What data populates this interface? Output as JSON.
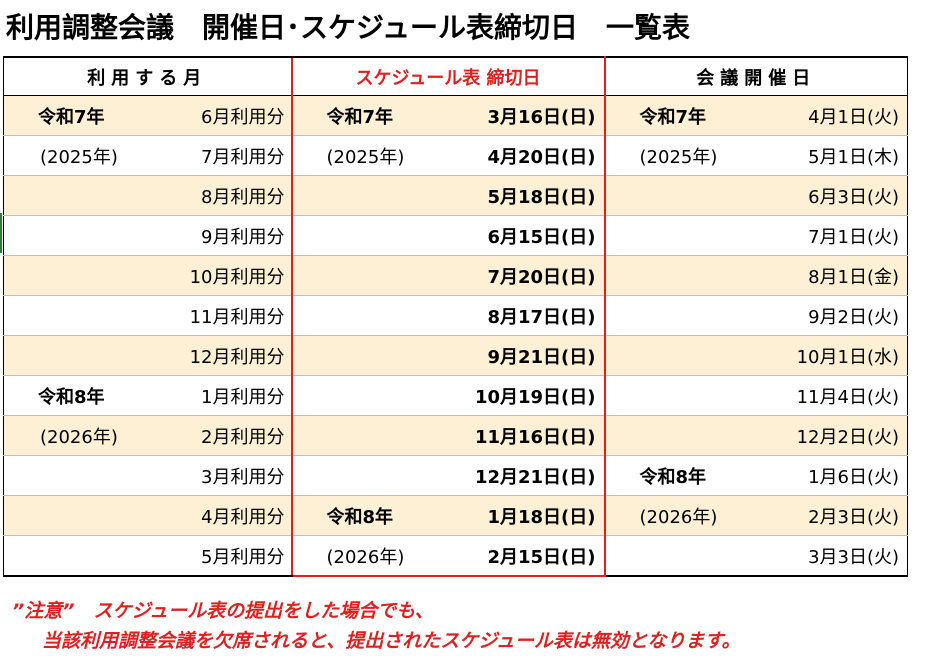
{
  "title": "利用調整会議　開催日･スケジュール表締切日　一覧表",
  "headers": {
    "month": "利用する月",
    "deadline": "スケジュール表 締切日",
    "meeting": "会議開催日"
  },
  "rows": [
    {
      "era": "令和7年",
      "era_style": "bold",
      "month": "6月利用分",
      "dl_era": "令和7年",
      "dl_era_style": "bold",
      "deadline": "3月16日(日)",
      "mt_era": "令和7年",
      "mt_era_style": "bold",
      "meeting": "4月1日(火)"
    },
    {
      "era": "(2025年)",
      "era_style": "year",
      "month": "7月利用分",
      "dl_era": "(2025年)",
      "dl_era_style": "year",
      "deadline": "4月20日(日)",
      "mt_era": "(2025年)",
      "mt_era_style": "year",
      "meeting": "5月1日(木)"
    },
    {
      "era": "",
      "era_style": "",
      "month": "8月利用分",
      "dl_era": "",
      "dl_era_style": "",
      "deadline": "5月18日(日)",
      "mt_era": "",
      "mt_era_style": "",
      "meeting": "6月3日(火)"
    },
    {
      "era": "",
      "era_style": "",
      "month": "9月利用分",
      "dl_era": "",
      "dl_era_style": "",
      "deadline": "6月15日(日)",
      "mt_era": "",
      "mt_era_style": "",
      "meeting": "7月1日(火)"
    },
    {
      "era": "",
      "era_style": "",
      "month": "10月利用分",
      "dl_era": "",
      "dl_era_style": "",
      "deadline": "7月20日(日)",
      "mt_era": "",
      "mt_era_style": "",
      "meeting": "8月1日(金)"
    },
    {
      "era": "",
      "era_style": "",
      "month": "11月利用分",
      "dl_era": "",
      "dl_era_style": "",
      "deadline": "8月17日(日)",
      "mt_era": "",
      "mt_era_style": "",
      "meeting": "9月2日(火)"
    },
    {
      "era": "",
      "era_style": "",
      "month": "12月利用分",
      "dl_era": "",
      "dl_era_style": "",
      "deadline": "9月21日(日)",
      "mt_era": "",
      "mt_era_style": "",
      "meeting": "10月1日(水)"
    },
    {
      "era": "令和8年",
      "era_style": "bold",
      "month": "1月利用分",
      "dl_era": "",
      "dl_era_style": "",
      "deadline": "10月19日(日)",
      "mt_era": "",
      "mt_era_style": "",
      "meeting": "11月4日(火)"
    },
    {
      "era": "(2026年)",
      "era_style": "year",
      "month": "2月利用分",
      "dl_era": "",
      "dl_era_style": "",
      "deadline": "11月16日(日)",
      "mt_era": "",
      "mt_era_style": "",
      "meeting": "12月2日(火)"
    },
    {
      "era": "",
      "era_style": "",
      "month": "3月利用分",
      "dl_era": "",
      "dl_era_style": "",
      "deadline": "12月21日(日)",
      "mt_era": "令和8年",
      "mt_era_style": "bold",
      "meeting": "1月6日(火)"
    },
    {
      "era": "",
      "era_style": "",
      "month": "4月利用分",
      "dl_era": "令和8年",
      "dl_era_style": "bold",
      "deadline": "1月18日(日)",
      "mt_era": "(2026年)",
      "mt_era_style": "year",
      "meeting": "2月3日(火)"
    },
    {
      "era": "",
      "era_style": "",
      "month": "5月利用分",
      "dl_era": "(2026年)",
      "dl_era_style": "year",
      "deadline": "2月15日(日)",
      "mt_era": "",
      "mt_era_style": "",
      "meeting": "3月3日(火)"
    }
  ],
  "notes": {
    "line1": "”注意”　スケジュール表の提出をした場合でも、",
    "line2": "当該利用調整会議を欠席されると、提出されたスケジュール表は無効となります。"
  },
  "colors": {
    "accent_red": "#e02020",
    "band": "#fdf0d5"
  }
}
